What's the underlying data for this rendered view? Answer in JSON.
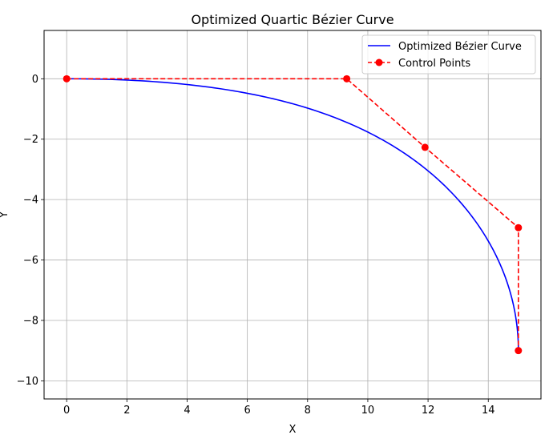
{
  "chart_data": {
    "type": "line",
    "title": "Optimized Quartic Bézier Curve",
    "xlabel": "X",
    "ylabel": "Y",
    "xlim": [
      -0.75,
      15.75
    ],
    "ylim": [
      -10.6,
      1.6
    ],
    "xticks": [
      0,
      2,
      4,
      6,
      8,
      10,
      12,
      14
    ],
    "yticks": [
      -10,
      -8,
      -6,
      -4,
      -2,
      0
    ],
    "xtick_labels": [
      "0",
      "2",
      "4",
      "6",
      "8",
      "10",
      "12",
      "14"
    ],
    "ytick_labels": [
      "−10",
      "−8",
      "−6",
      "−4",
      "−2",
      "0"
    ],
    "grid": true,
    "legend_position": "top-right",
    "series": [
      {
        "name": "Optimized Bézier Curve",
        "style": "solid",
        "color": "#0000ff",
        "kind": "quartic-bezier"
      },
      {
        "name": "Control Points",
        "style": "dashed-with-markers",
        "color": "#ff0000",
        "x": [
          0,
          9.3,
          11.9,
          15.0,
          15.0
        ],
        "y": [
          0,
          0,
          -2.27,
          -4.93,
          -9.0
        ]
      }
    ]
  }
}
